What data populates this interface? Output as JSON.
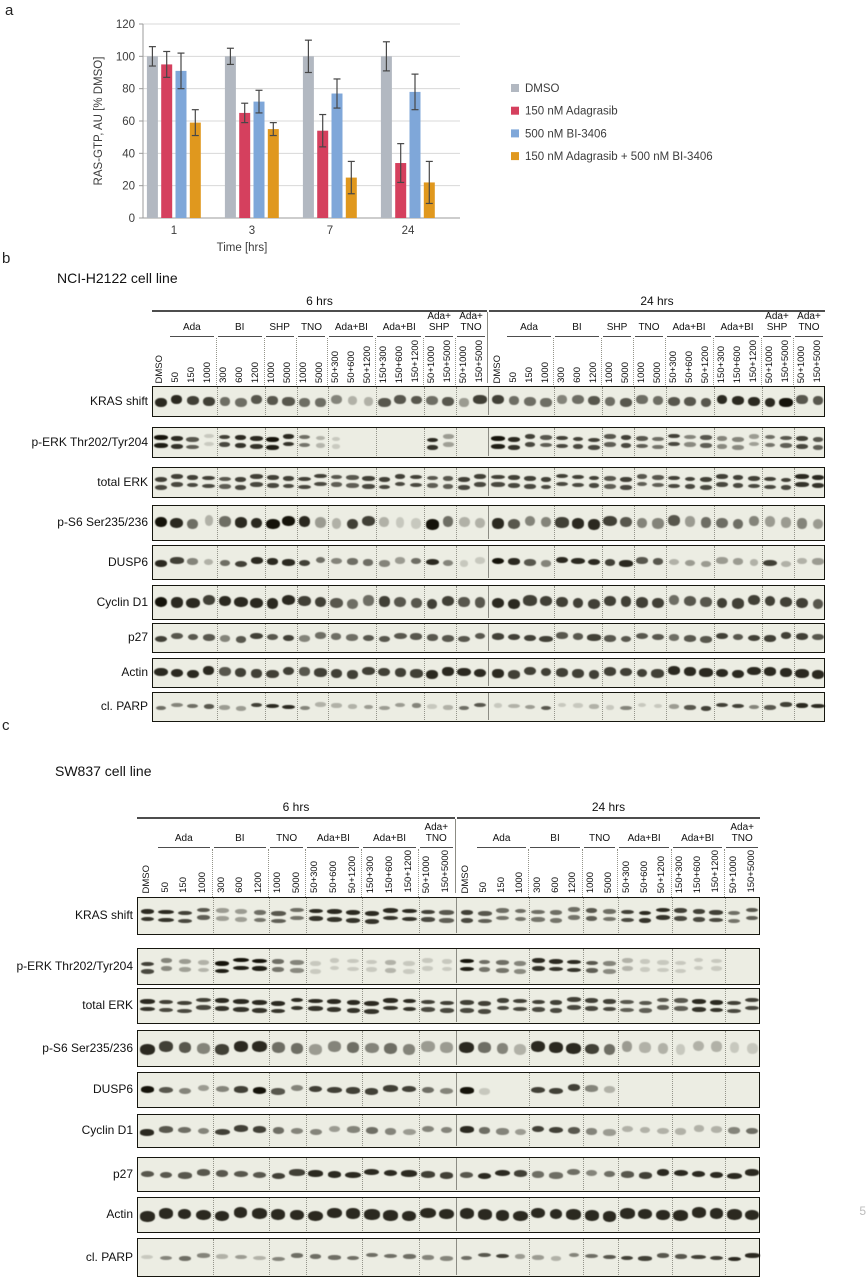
{
  "page_number": "5",
  "panel_a": {
    "letter": "a"
  },
  "chart_data": {
    "type": "bar",
    "title": "",
    "xlabel": "Time [hrs]",
    "ylabel": "RAS-GTP, AU [% DMSO]",
    "categories": [
      "1",
      "3",
      "7",
      "24"
    ],
    "ylim": [
      0,
      120
    ],
    "ytick_step": 20,
    "grid": true,
    "legend_position": "right",
    "series": [
      {
        "name": "DMSO",
        "color": "#b2b8c1",
        "values": [
          100,
          100,
          100,
          100
        ],
        "errors": [
          6,
          5,
          10,
          9
        ]
      },
      {
        "name": "150 nM Adagrasib",
        "color": "#d5405e",
        "values": [
          95,
          65,
          54,
          34
        ],
        "errors": [
          8,
          6,
          10,
          12
        ]
      },
      {
        "name": "500 nM BI-3406",
        "color": "#7fa7d9",
        "values": [
          91,
          72,
          77,
          78
        ],
        "errors": [
          11,
          7,
          9,
          11
        ]
      },
      {
        "name": "150 nM Adagrasib + 500 nM BI-3406",
        "color": "#e0981e",
        "values": [
          59,
          55,
          25,
          22
        ],
        "errors": [
          8,
          4,
          10,
          13
        ]
      }
    ]
  },
  "blot_panels": [
    {
      "id": "b",
      "letter": "b",
      "title": "NCI-H2122 cell line",
      "time_blocks": [
        "6 hrs",
        "24 hrs"
      ],
      "groups": [
        {
          "name": "",
          "lanes": [
            "DMSO"
          ]
        },
        {
          "name": "Ada",
          "lanes": [
            "50",
            "150",
            "1000"
          ]
        },
        {
          "name": "BI",
          "lanes": [
            "300",
            "600",
            "1200"
          ]
        },
        {
          "name": "SHP",
          "lanes": [
            "1000",
            "5000"
          ]
        },
        {
          "name": "TNO",
          "lanes": [
            "1000",
            "5000"
          ]
        },
        {
          "name": "Ada+BI",
          "lanes": [
            "50+300",
            "50+600",
            "50+1200"
          ]
        },
        {
          "name": "Ada+BI",
          "lanes": [
            "150+300",
            "150+600",
            "150+1200"
          ]
        },
        {
          "name": "Ada+\nSHP",
          "lanes": [
            "50+1000",
            "150+5000"
          ]
        },
        {
          "name": "Ada+\nTNO",
          "lanes": [
            "50+1000",
            "150+5000"
          ]
        }
      ],
      "rows": [
        {
          "label": "KRAS shift",
          "band": "thick",
          "i6": [
            8,
            8,
            7,
            7,
            5,
            5,
            6,
            6,
            6,
            5,
            5,
            4,
            2,
            2,
            6,
            6,
            6,
            5,
            6,
            3,
            7
          ],
          "i24": [
            7,
            5,
            5,
            5,
            4,
            5,
            6,
            5,
            6,
            5,
            5,
            6,
            6,
            6,
            8,
            8,
            8,
            8,
            9,
            6,
            6
          ]
        },
        {
          "label": "p-ERK Thr202/Tyr204",
          "band": "double",
          "i6": [
            9,
            8,
            6,
            1,
            7,
            8,
            8,
            9,
            8,
            5,
            2,
            1,
            0,
            0,
            0,
            0,
            0,
            8,
            3,
            0,
            0
          ],
          "i24": [
            9,
            8,
            7,
            6,
            7,
            7,
            7,
            6,
            7,
            6,
            5,
            7,
            4,
            6,
            4,
            4,
            3,
            5,
            6,
            7,
            6
          ]
        },
        {
          "label": "total ERK",
          "band": "double",
          "i6": [
            7,
            7,
            7,
            7,
            6,
            7,
            7,
            7,
            7,
            7,
            7,
            6,
            6,
            7,
            7,
            7,
            7,
            6,
            6,
            7,
            7
          ],
          "i24": [
            7,
            7,
            7,
            7,
            7,
            7,
            7,
            6,
            7,
            6,
            6,
            7,
            7,
            7,
            7,
            7,
            7,
            7,
            7,
            8,
            8
          ]
        },
        {
          "label": "p-S6 Ser235/236",
          "band": "thick",
          "i6": [
            9,
            8,
            5,
            2,
            5,
            8,
            8,
            9,
            9,
            8,
            3,
            2,
            7,
            7,
            2,
            1,
            1,
            9,
            5,
            2,
            2
          ],
          "i24": [
            8,
            6,
            4,
            4,
            7,
            8,
            8,
            7,
            6,
            4,
            4,
            6,
            3,
            5,
            5,
            5,
            4,
            3,
            3,
            4,
            3
          ]
        },
        {
          "label": "DUSP6",
          "band": "single",
          "i6": [
            8,
            7,
            4,
            2,
            5,
            7,
            8,
            8,
            8,
            7,
            5,
            4,
            5,
            5,
            4,
            3,
            5,
            8,
            4,
            1,
            1
          ],
          "i24": [
            9,
            8,
            6,
            4,
            8,
            8,
            8,
            7,
            8,
            6,
            6,
            2,
            3,
            3,
            3,
            3,
            2,
            7,
            2,
            2,
            3
          ]
        },
        {
          "label": "Cyclin D1",
          "band": "thick",
          "i6": [
            9,
            8,
            8,
            7,
            8,
            8,
            8,
            8,
            8,
            7,
            7,
            6,
            5,
            5,
            7,
            6,
            6,
            7,
            7,
            6,
            6
          ],
          "i24": [
            8,
            8,
            7,
            7,
            7,
            7,
            7,
            7,
            7,
            7,
            7,
            5,
            6,
            6,
            7,
            7,
            7,
            7,
            7,
            7,
            6
          ]
        },
        {
          "label": "p27",
          "band": "single",
          "i6": [
            7,
            6,
            6,
            6,
            4,
            6,
            7,
            6,
            7,
            4,
            5,
            5,
            5,
            6,
            6,
            6,
            6,
            6,
            6,
            6,
            6
          ],
          "i24": [
            7,
            7,
            7,
            7,
            6,
            6,
            7,
            6,
            6,
            6,
            6,
            5,
            6,
            6,
            7,
            6,
            7,
            7,
            7,
            7,
            6
          ]
        },
        {
          "label": "Actin",
          "band": "thick",
          "i6": [
            8,
            8,
            8,
            8,
            6,
            7,
            7,
            7,
            7,
            6,
            7,
            7,
            7,
            7,
            7,
            7,
            7,
            8,
            8,
            8,
            8
          ],
          "i24": [
            8,
            7,
            7,
            7,
            7,
            7,
            7,
            7,
            7,
            7,
            7,
            8,
            8,
            8,
            8,
            8,
            8,
            8,
            8,
            8,
            8
          ]
        },
        {
          "label": "cl. PARP",
          "band": "thin",
          "i6": [
            5,
            4,
            5,
            6,
            3,
            3,
            7,
            8,
            8,
            4,
            2,
            2,
            2,
            3,
            3,
            3,
            4,
            1,
            2,
            5,
            6
          ],
          "i24": [
            1,
            2,
            3,
            6,
            1,
            1,
            2,
            1,
            4,
            1,
            1,
            3,
            6,
            7,
            7,
            7,
            4,
            6,
            7,
            8,
            8
          ]
        }
      ]
    },
    {
      "id": "c",
      "letter": "c",
      "title": "SW837 cell line",
      "time_blocks": [
        "6 hrs",
        "24 hrs"
      ],
      "groups": [
        {
          "name": "",
          "lanes": [
            "DMSO"
          ]
        },
        {
          "name": "Ada",
          "lanes": [
            "50",
            "150",
            "1000"
          ]
        },
        {
          "name": "BI",
          "lanes": [
            "300",
            "600",
            "1200"
          ]
        },
        {
          "name": "TNO",
          "lanes": [
            "1000",
            "5000"
          ]
        },
        {
          "name": "Ada+BI",
          "lanes": [
            "50+300",
            "50+600",
            "50+1200"
          ]
        },
        {
          "name": "Ada+BI",
          "lanes": [
            "150+300",
            "150+600",
            "150+1200"
          ]
        },
        {
          "name": "Ada+\nTNO",
          "lanes": [
            "50+1000",
            "150+5000"
          ]
        }
      ],
      "rows": [
        {
          "label": "KRAS shift",
          "band": "double",
          "i6": [
            8,
            8,
            7,
            6,
            3,
            3,
            5,
            6,
            5,
            8,
            8,
            8,
            8,
            8,
            8,
            7,
            6
          ],
          "i24": [
            7,
            6,
            5,
            5,
            5,
            5,
            5,
            6,
            5,
            7,
            8,
            8,
            7,
            7,
            7,
            5,
            6
          ]
        },
        {
          "label": "p-ERK Thr202/Tyr204",
          "band": "double",
          "i6": [
            7,
            4,
            3,
            2,
            9,
            9,
            9,
            5,
            4,
            1,
            1,
            1,
            1,
            2,
            1,
            1,
            1
          ],
          "i24": [
            9,
            5,
            5,
            4,
            8,
            8,
            8,
            6,
            4,
            2,
            1,
            1,
            1,
            1,
            1,
            0,
            0
          ]
        },
        {
          "label": "total ERK",
          "band": "double",
          "i6": [
            8,
            7,
            7,
            7,
            8,
            8,
            8,
            8,
            8,
            8,
            8,
            8,
            8,
            8,
            8,
            7,
            7
          ],
          "i24": [
            7,
            7,
            7,
            7,
            7,
            7,
            7,
            7,
            7,
            6,
            6,
            6,
            6,
            8,
            8,
            7,
            7
          ]
        },
        {
          "label": "p-S6 Ser235/236",
          "band": "thick",
          "i6": [
            8,
            7,
            6,
            4,
            7,
            8,
            8,
            5,
            5,
            3,
            4,
            5,
            4,
            5,
            4,
            3,
            3
          ],
          "i24": [
            8,
            5,
            4,
            2,
            8,
            8,
            8,
            7,
            5,
            3,
            2,
            2,
            1,
            2,
            2,
            1,
            1
          ]
        },
        {
          "label": "DUSP6",
          "band": "single",
          "i6": [
            9,
            6,
            4,
            3,
            4,
            7,
            9,
            6,
            4,
            7,
            7,
            7,
            7,
            7,
            7,
            5,
            4
          ],
          "i24": [
            9,
            1,
            0,
            0,
            7,
            7,
            7,
            4,
            2,
            0,
            0,
            0,
            0,
            0,
            0,
            0,
            0
          ]
        },
        {
          "label": "Cyclin D1",
          "band": "single",
          "i6": [
            8,
            6,
            5,
            4,
            7,
            7,
            7,
            5,
            4,
            4,
            3,
            4,
            5,
            4,
            3,
            4,
            4
          ],
          "i24": [
            8,
            5,
            4,
            3,
            7,
            7,
            6,
            4,
            3,
            2,
            2,
            2,
            2,
            2,
            2,
            4,
            5
          ]
        },
        {
          "label": "p27",
          "band": "single",
          "i6": [
            6,
            6,
            6,
            6,
            6,
            6,
            6,
            7,
            7,
            8,
            8,
            8,
            8,
            8,
            8,
            7,
            7
          ],
          "i24": [
            6,
            8,
            8,
            7,
            5,
            5,
            5,
            4,
            5,
            6,
            7,
            8,
            8,
            8,
            8,
            8,
            8
          ]
        },
        {
          "label": "Actin",
          "band": "thick",
          "i6": [
            8,
            8,
            8,
            8,
            8,
            8,
            8,
            8,
            8,
            8,
            8,
            8,
            8,
            8,
            8,
            8,
            8
          ],
          "i24": [
            8,
            8,
            8,
            8,
            8,
            8,
            8,
            8,
            8,
            8,
            8,
            8,
            8,
            8,
            8,
            8,
            8
          ]
        },
        {
          "label": "cl. PARP",
          "band": "thin",
          "i6": [
            1,
            4,
            5,
            4,
            2,
            3,
            2,
            4,
            5,
            5,
            5,
            5,
            5,
            5,
            5,
            4,
            4
          ],
          "i24": [
            5,
            6,
            7,
            3,
            3,
            2,
            4,
            5,
            6,
            7,
            7,
            6,
            6,
            7,
            7,
            8,
            8
          ]
        }
      ]
    }
  ]
}
